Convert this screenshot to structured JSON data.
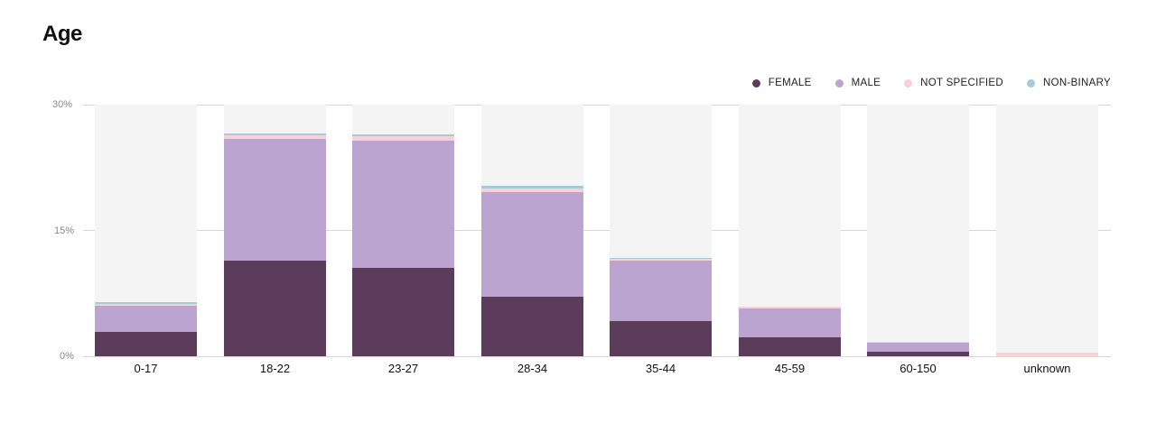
{
  "title": "Age",
  "colors": {
    "female": "#5b3d5b",
    "male": "#bba4d0",
    "not_specified": "#fbcfd6",
    "non_binary": "#a6cbd8",
    "bar_background": "#f4f4f4"
  },
  "legend": [
    {
      "label": "FEMALE",
      "color": "#5b3d5b"
    },
    {
      "label": "MALE",
      "color": "#bba4d0"
    },
    {
      "label": "NOT SPECIFIED",
      "color": "#fbcfd6"
    },
    {
      "label": "NON-BINARY",
      "color": "#a6cbd8"
    }
  ],
  "y_ticks": [
    "0%",
    "15%",
    "30%"
  ],
  "chart_data": {
    "type": "bar",
    "stacked": true,
    "title": "Age",
    "xlabel": "",
    "ylabel": "",
    "ylim": [
      0,
      30
    ],
    "y_ticks": [
      0,
      15,
      30
    ],
    "y_tick_format": "percent",
    "grid": true,
    "legend_position": "top-right",
    "categories": [
      "0-17",
      "18-22",
      "23-27",
      "28-34",
      "35-44",
      "45-59",
      "60-150",
      "unknown"
    ],
    "series": [
      {
        "name": "FEMALE",
        "color": "#5b3d5b",
        "values": [
          2.9,
          11.4,
          10.5,
          7.1,
          4.2,
          2.3,
          0.5,
          0.0
        ]
      },
      {
        "name": "MALE",
        "color": "#bba4d0",
        "values": [
          3.1,
          14.5,
          15.2,
          12.5,
          7.2,
          3.4,
          1.1,
          0.0
        ]
      },
      {
        "name": "NOT SPECIFIED",
        "color": "#fbcfd6",
        "values": [
          0.2,
          0.4,
          0.5,
          0.4,
          0.2,
          0.2,
          0.1,
          0.4
        ]
      },
      {
        "name": "NON-BINARY",
        "color": "#a6cbd8",
        "values": [
          0.3,
          0.3,
          0.3,
          0.3,
          0.1,
          0.0,
          0.0,
          0.0
        ]
      }
    ]
  }
}
